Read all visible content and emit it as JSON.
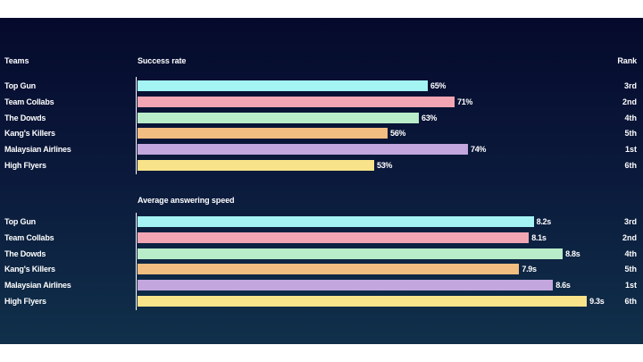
{
  "chart_data": [
    {
      "type": "bar",
      "orientation": "horizontal",
      "title": "Success rate",
      "category_header": "Teams",
      "rank_header": "Rank",
      "categories": [
        "Top Gun",
        "Team Collabs",
        "The Dowds",
        "Kang's Killers",
        "Malaysian Airlines",
        "High Flyers"
      ],
      "values": [
        65,
        71,
        63,
        56,
        74,
        53
      ],
      "value_labels": [
        "65%",
        "71%",
        "63%",
        "56%",
        "74%",
        "53%"
      ],
      "ranks": [
        "3rd",
        "2nd",
        "4th",
        "5th",
        "1st",
        "6th"
      ],
      "colors": [
        "#a4f4f4",
        "#f2a6b4",
        "#b9ecc9",
        "#f2bd80",
        "#c2a6dd",
        "#f9e38a"
      ],
      "grid": false
    },
    {
      "type": "bar",
      "orientation": "horizontal",
      "title": "Average answering speed",
      "categories": [
        "Top Gun",
        "Team Collabs",
        "The Dowds",
        "Kang's Killers",
        "Malaysian Airlines",
        "High Flyers"
      ],
      "values": [
        8.2,
        8.1,
        8.8,
        7.9,
        8.6,
        9.3
      ],
      "value_labels": [
        "8.2s",
        "8.1s",
        "8.8s",
        "7.9s",
        "8.6s",
        "9.3s"
      ],
      "ranks": [
        "3rd",
        "2nd",
        "4th",
        "5th",
        "1st",
        "6th"
      ],
      "colors": [
        "#a4f4f4",
        "#f2a6b4",
        "#b9ecc9",
        "#f2bd80",
        "#c2a6dd",
        "#f9e38a"
      ],
      "grid": false
    }
  ]
}
